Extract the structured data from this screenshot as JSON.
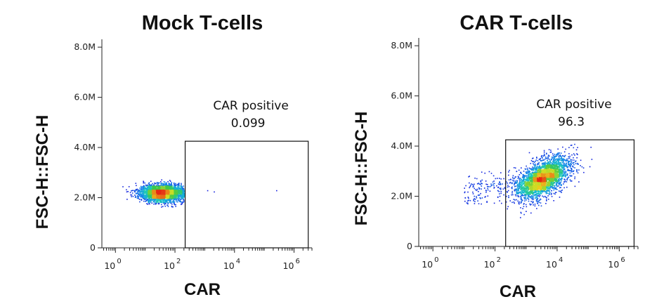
{
  "chart_data": [
    {
      "type": "scatter",
      "title": "Mock T-cells",
      "xlabel": "CAR",
      "ylabel": "FSC-H::FSC-H",
      "x_scale": "log",
      "xlim": [
        0.35,
        4000000
      ],
      "ylim": [
        0,
        8200000
      ],
      "y_ticks": [
        "0",
        "2.0M",
        "4.0M",
        "6.0M",
        "8.0M"
      ],
      "y_tick_values": [
        0,
        2000000,
        4000000,
        6000000,
        8000000
      ],
      "x_ticks": [
        "10",
        "10",
        "10",
        "10"
      ],
      "x_tick_exponents": [
        "0",
        "2",
        "4",
        "6"
      ],
      "x_tick_values": [
        1,
        100,
        10000,
        1000000
      ],
      "gate": {
        "name": "CAR positive",
        "value": "0.099",
        "x_range": [
          220,
          3000000
        ],
        "y_range": [
          0,
          4250000
        ]
      },
      "population": {
        "center_log10_x": 1.55,
        "sd_log10_x": 0.38,
        "center_y": 2200000,
        "sd_y": 180000,
        "events": 2600,
        "max_x": 200,
        "stray_events": [
          [
            1200,
            2300000
          ],
          [
            2000,
            2250000
          ],
          [
            250000,
            2300000
          ]
        ]
      }
    },
    {
      "type": "scatter",
      "title": "CAR T-cells",
      "xlabel": "CAR",
      "ylabel": "FSC-H::FSC-H",
      "x_scale": "log",
      "xlim": [
        0.35,
        4000000
      ],
      "ylim": [
        0,
        8200000
      ],
      "y_ticks": [
        "0",
        "2.0M",
        "4.0M",
        "6.0M",
        "8.0M"
      ],
      "y_tick_values": [
        0,
        2000000,
        4000000,
        6000000,
        8000000
      ],
      "x_ticks": [
        "10",
        "10",
        "10",
        "10"
      ],
      "x_tick_exponents": [
        "0",
        "2",
        "4",
        "6"
      ],
      "x_tick_values": [
        1,
        100,
        10000,
        1000000
      ],
      "gate": {
        "name": "CAR positive",
        "value": "96.3",
        "x_range": [
          220,
          3000000
        ],
        "y_range": [
          0,
          4250000
        ]
      },
      "population": {
        "center_log10_x": 3.55,
        "sd_log10_x": 0.42,
        "center_y": 2750000,
        "sd_y": 420000,
        "correlation": 0.55,
        "events": 3000,
        "tail_events": 220
      }
    }
  ]
}
